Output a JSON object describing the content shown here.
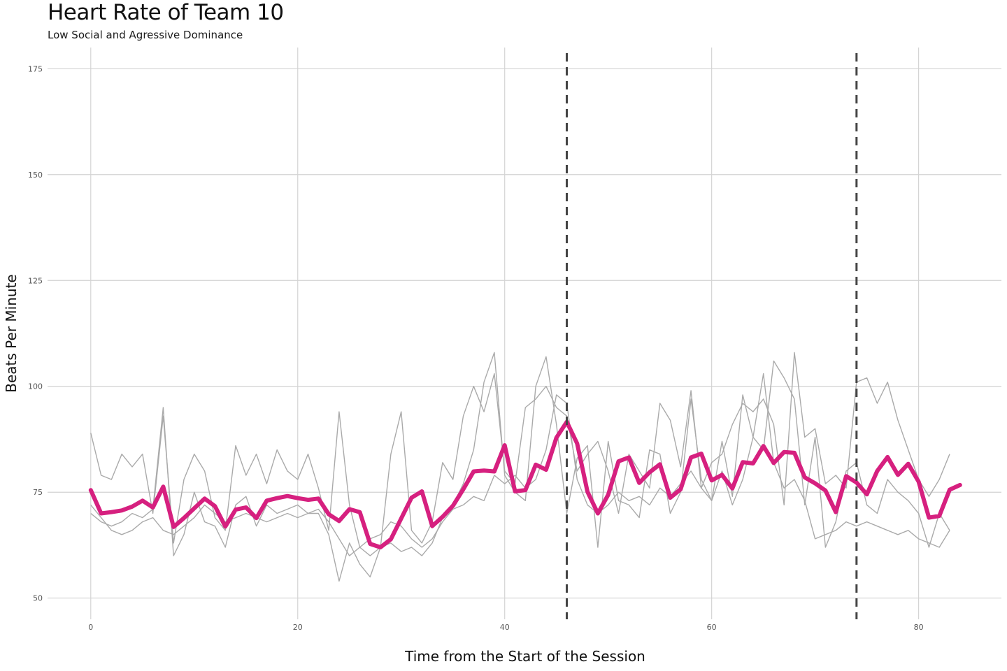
{
  "chart_data": {
    "type": "line",
    "title": "Heart Rate of Team 10",
    "subtitle": "Low Social and Agressive Dominance",
    "xlabel": "Time from the Start of the Session",
    "ylabel": "Beats Per Minute",
    "xlim": [
      -3.5,
      88
    ],
    "ylim": [
      45,
      180
    ],
    "x_ticks": [
      0,
      20,
      40,
      60,
      80
    ],
    "y_ticks": [
      50,
      75,
      100,
      125,
      150,
      175
    ],
    "grid": true,
    "vlines": [
      46,
      74
    ],
    "colors": {
      "team_mean": "#d6207f",
      "members": "#aaaaaa",
      "vlines": "#444444",
      "grid": "#d3d3d3"
    },
    "series": [
      {
        "name": "",
        "role": "team_mean",
        "x": [
          0,
          1,
          2,
          3,
          4,
          5,
          6,
          7,
          8,
          9,
          10,
          11,
          12,
          13,
          14,
          15,
          16,
          17,
          18,
          19,
          20,
          21,
          22,
          23,
          24,
          25,
          26,
          27,
          28,
          29,
          30,
          31,
          32,
          33,
          34,
          35,
          36,
          37,
          38,
          39,
          40,
          41,
          42,
          43,
          44,
          45,
          46,
          47,
          48,
          49,
          50,
          51,
          52,
          53,
          54,
          55,
          56,
          57,
          58,
          59,
          60,
          61,
          62,
          63,
          64,
          65,
          66,
          67,
          68,
          69,
          70,
          71,
          72,
          73,
          74,
          75,
          76,
          77,
          78,
          79,
          80,
          81,
          82,
          83,
          84
        ],
        "values": [
          75.5,
          70,
          70.3,
          70.7,
          71.6,
          73,
          71.4,
          76.3,
          66.8,
          68.9,
          71.2,
          73.5,
          71.7,
          66.9,
          70.9,
          71.4,
          68.9,
          73,
          73.6,
          74.1,
          73.6,
          73.2,
          73.5,
          69.8,
          68.2,
          71,
          70.3,
          62.8,
          62,
          63.9,
          68.8,
          73.7,
          75.2,
          67,
          69.2,
          71.8,
          75.7,
          79.9,
          80.1,
          79.9,
          86.1,
          75.2,
          75.5,
          81.5,
          80.3,
          87.9,
          91.6,
          86.5,
          75.1,
          70,
          74.4,
          82.3,
          83.2,
          77.2,
          79.7,
          81.6,
          73.7,
          75.7,
          83.2,
          84.1,
          77.8,
          79.1,
          75.9,
          82.1,
          81.8,
          85.9,
          81.9,
          84.5,
          84.3,
          78.5,
          77.1,
          75.4,
          70.3,
          78.8,
          77.3,
          74.5,
          80,
          83.3,
          79.1,
          81.7,
          77.5,
          69,
          69.4,
          75.6,
          76.7
        ]
      },
      {
        "name": "",
        "role": "member",
        "x": [
          0,
          1,
          2,
          3,
          4,
          5,
          6,
          7,
          8,
          9,
          10,
          11,
          12,
          13,
          14,
          15,
          16,
          17,
          18,
          19,
          20,
          21,
          22,
          23,
          24,
          25,
          26,
          27,
          28,
          29,
          30,
          31,
          32,
          33,
          34,
          35,
          36,
          37,
          38,
          39,
          40,
          41,
          42,
          43,
          44,
          45,
          46,
          47,
          48,
          49,
          50,
          51,
          52,
          53,
          54,
          55,
          56,
          57,
          58,
          59,
          60,
          61,
          62,
          63,
          64,
          65,
          66,
          67,
          68,
          69,
          70,
          71,
          72,
          73,
          74,
          75,
          76,
          77,
          78,
          79,
          80,
          81,
          82,
          83
        ],
        "values": [
          89,
          79,
          78,
          84,
          81,
          84,
          70,
          93,
          63,
          78,
          84,
          80,
          69,
          66,
          86,
          79,
          84,
          77,
          85,
          80,
          78,
          84,
          76,
          66,
          94,
          72,
          62,
          60,
          62,
          84,
          94,
          66,
          63,
          68,
          82,
          78,
          93,
          100,
          94,
          103,
          80,
          77,
          95,
          97,
          100,
          95,
          93,
          80,
          84,
          87,
          80,
          70,
          84,
          80,
          76,
          96,
          92,
          81,
          99,
          76,
          82,
          84,
          91,
          96,
          94,
          97,
          91,
          72,
          108,
          88,
          90,
          77,
          79,
          76,
          101,
          102,
          96,
          101,
          92,
          85,
          78,
          74,
          78,
          84
        ]
      },
      {
        "name": "",
        "role": "member",
        "x": [
          0,
          1,
          2,
          3,
          4,
          5,
          6,
          7,
          8,
          9,
          10,
          11,
          12,
          13,
          14,
          15,
          16,
          17,
          18,
          19,
          20,
          21,
          22,
          23,
          24,
          25,
          26,
          27,
          28,
          29,
          30,
          31,
          32,
          33,
          34,
          35,
          36,
          37,
          38,
          39,
          40,
          41,
          42,
          43,
          44,
          45,
          46,
          47,
          48,
          49,
          50,
          51,
          52,
          53,
          54,
          55,
          56,
          57,
          58,
          59,
          60,
          61,
          62,
          63,
          64,
          65,
          66,
          67,
          68,
          69,
          70,
          71,
          72,
          73,
          74,
          75,
          76,
          77,
          78,
          79,
          80,
          81,
          82,
          83
        ],
        "values": [
          72,
          69,
          66,
          65,
          66,
          68,
          69,
          66,
          65,
          67,
          69,
          72,
          70,
          68,
          69,
          70,
          69,
          68,
          69,
          70,
          69,
          70,
          71,
          68,
          64,
          60,
          62,
          64,
          65,
          68,
          67,
          64,
          62,
          64,
          68,
          71,
          72,
          74,
          73,
          79,
          77,
          79,
          76,
          78,
          85,
          98,
          96,
          78,
          72,
          70,
          72,
          75,
          73,
          74,
          72,
          76,
          74,
          77,
          80,
          76,
          73,
          80,
          72,
          78,
          88,
          103,
          82,
          76,
          78,
          73,
          64,
          65,
          66,
          68,
          67,
          68,
          67,
          66,
          65,
          66,
          64,
          63,
          62,
          66
        ]
      },
      {
        "name": "",
        "role": "member",
        "x": [
          0,
          1,
          2,
          3,
          4,
          5,
          6,
          7,
          8,
          9,
          10,
          11,
          12,
          13,
          14,
          15,
          16,
          17,
          18,
          19,
          20,
          21,
          22,
          23,
          24,
          25,
          26,
          27,
          28,
          29,
          30,
          31,
          32,
          33,
          34,
          35,
          36,
          37,
          38,
          39,
          40,
          41,
          42,
          43,
          44,
          45,
          46,
          47,
          48,
          49,
          50,
          51,
          52,
          53,
          54,
          55,
          56,
          57,
          58,
          59,
          60,
          61,
          62,
          63,
          64,
          65,
          66,
          67,
          68,
          69,
          70,
          71,
          72,
          73,
          74,
          75,
          76,
          77,
          78,
          79,
          80,
          81,
          82,
          83
        ],
        "values": [
          70,
          68,
          67,
          68,
          70,
          69,
          71,
          95,
          60,
          65,
          75,
          68,
          67,
          62,
          72,
          74,
          67,
          72,
          70,
          71,
          72,
          70,
          70,
          65,
          54,
          63,
          58,
          55,
          62,
          63,
          61,
          62,
          60,
          63,
          69,
          72,
          77,
          85,
          101,
          108,
          79,
          75,
          73,
          100,
          107,
          91,
          70,
          83,
          86,
          62,
          87,
          73,
          72,
          69,
          85,
          84,
          70,
          75,
          97,
          78,
          73,
          87,
          74,
          98,
          88,
          85,
          106,
          102,
          97,
          72,
          88,
          62,
          68,
          80,
          82,
          72,
          70,
          78,
          75,
          73,
          70,
          62,
          70,
          66
        ]
      }
    ]
  }
}
